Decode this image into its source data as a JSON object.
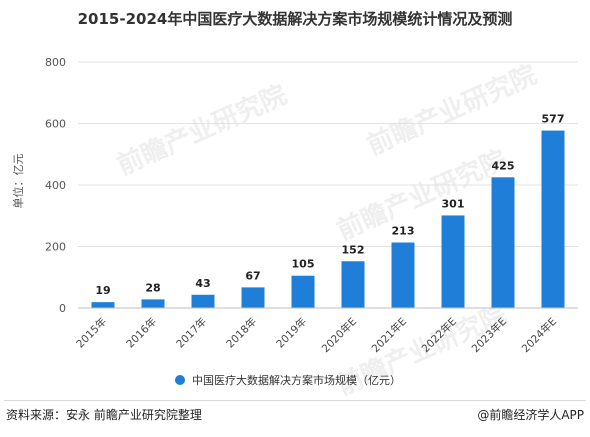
{
  "title": "2015-2024年中国医疗大数据解决方案市场规模统计情况及预测",
  "watermark": "前瞻产业研究院",
  "footer": {
    "source": "资料来源：安永 前瞻产业研究院整理",
    "brand": "@前瞻经济学人APP"
  },
  "colors": {
    "bar": "#1f7fd8",
    "grid": "#e3e3e3",
    "axis": "#bfbfbf"
  },
  "chart_data": {
    "type": "bar",
    "title": "2015-2024年中国医疗大数据解决方案市场规模统计情况及预测",
    "categories": [
      "2015年",
      "2016年",
      "2017年",
      "2018年",
      "2019年",
      "2020年E",
      "2021年E",
      "2022年E",
      "2023年E",
      "2024年E"
    ],
    "series": [
      {
        "name": "中国医疗大数据解决方案市场规模（亿元）",
        "values": [
          19,
          28,
          43,
          67,
          105,
          152,
          213,
          301,
          425,
          577
        ]
      }
    ],
    "ylabel": "单位：亿元",
    "xlabel": "",
    "ylim": [
      0,
      800
    ],
    "yticks": [
      0,
      200,
      400,
      600,
      800
    ],
    "grid": true,
    "legend": "bottom-center",
    "data_labels": true
  }
}
